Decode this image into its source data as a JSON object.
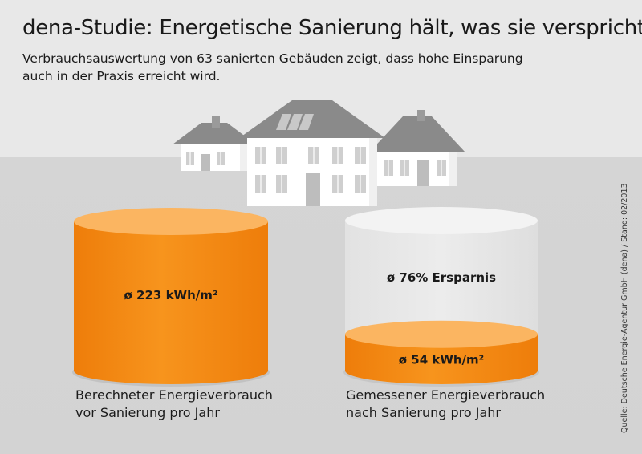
{
  "title": "dena-Studie: Energetische Sanierung hält, was sie verspricht.",
  "subtitle_lines": [
    "Verbrauchsauswertung von 63 sanierten Gebäuden zeigt, dass hohe Einsparung",
    "auch in der Praxis erreicht wird."
  ],
  "source": "Quelle: Deutsche Energie-Agentur GmbH (dena) / Stand: 02/2013",
  "colors": {
    "orange_top": "#fbb561",
    "orange_side": "#f7941d",
    "orange_dark": "#ee7d0a",
    "empty_side": "#ececec",
    "roof": "#8a8a8a",
    "wall": "#ffffff"
  },
  "chart_data": {
    "type": "bar",
    "unit": "kWh/m²",
    "categories": [
      [
        "Berechneter Energieverbrauch",
        "vor Sanierung pro Jahr"
      ],
      [
        "Gemessener Energieverbrauch",
        "nach Sanierung pro Jahr"
      ]
    ],
    "values": [
      223,
      54
    ],
    "value_labels": [
      "ø 223 kWh/m²",
      "ø 54 kWh/m²"
    ],
    "annotation": "ø 76% Ersparnis",
    "savings_percent": 76
  }
}
